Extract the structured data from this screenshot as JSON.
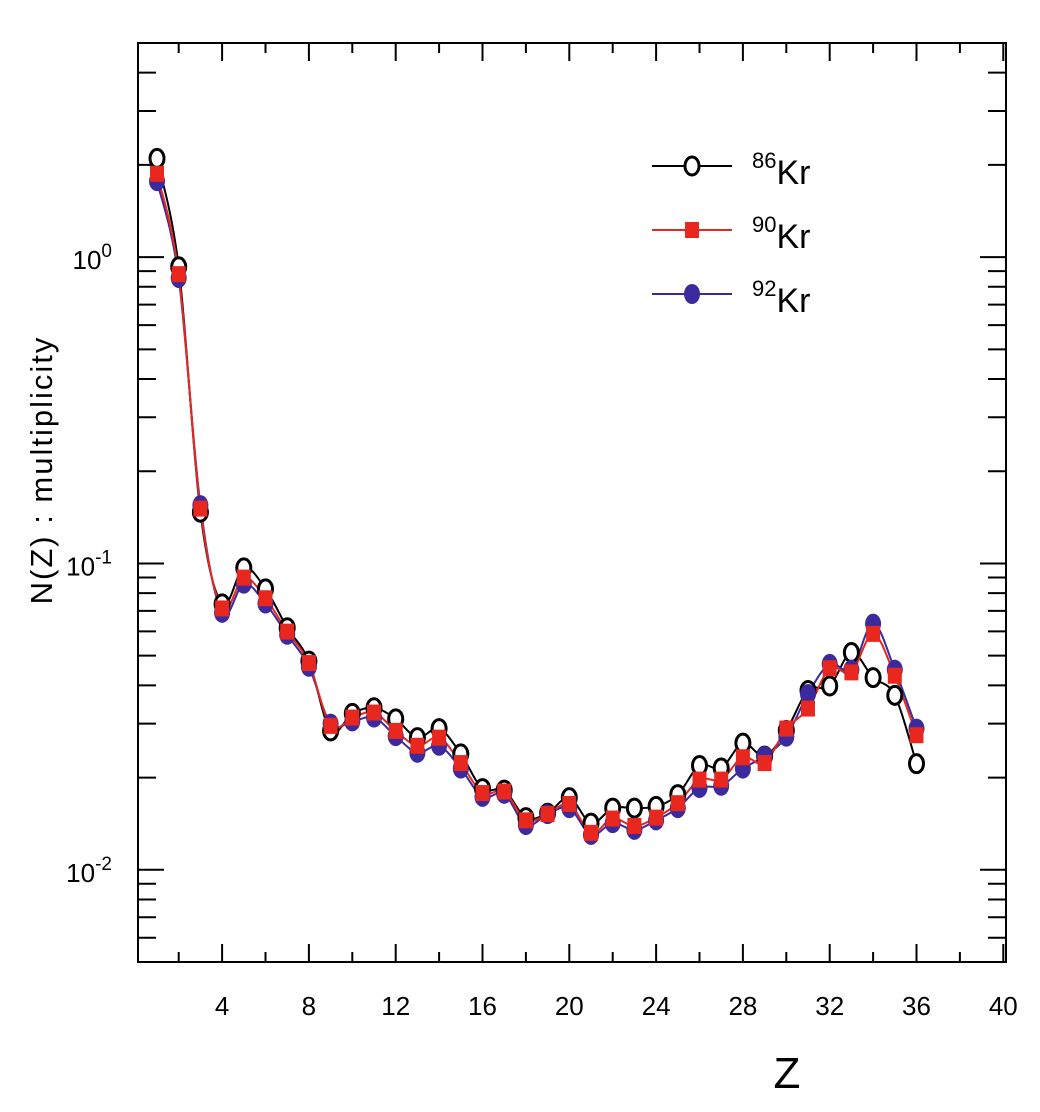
{
  "chart_data": {
    "type": "line",
    "title": "",
    "xlabel": "Z",
    "ylabel": "N(Z) : multiplicity",
    "xlim": [
      0,
      40
    ],
    "ylim": [
      0.005,
      5
    ],
    "yscale": "log",
    "grid": false,
    "legend_position": "top-right",
    "x_ticks": [
      4,
      8,
      12,
      16,
      20,
      24,
      28,
      32,
      36,
      40
    ],
    "y_ticks": [
      {
        "value": 1,
        "base": "10",
        "exp": "0"
      },
      {
        "value": 0.1,
        "base": "10",
        "exp": "-1"
      },
      {
        "value": 0.01,
        "base": "10",
        "exp": "-2"
      }
    ],
    "x": [
      1,
      2,
      3,
      4,
      5,
      6,
      7,
      8,
      9,
      10,
      11,
      12,
      13,
      14,
      15,
      16,
      17,
      18,
      19,
      20,
      21,
      22,
      23,
      24,
      25,
      26,
      27,
      28,
      29,
      30,
      31,
      32,
      33,
      34,
      35,
      36
    ],
    "series": [
      {
        "name": "86Kr",
        "mass": "86",
        "element": "Kr",
        "color": "#000000",
        "marker": "open-circle",
        "values": [
          2.1,
          0.93,
          0.147,
          0.0738,
          0.0967,
          0.0826,
          0.0617,
          0.048,
          0.0284,
          0.0324,
          0.0338,
          0.0311,
          0.027,
          0.0289,
          0.0239,
          0.0184,
          0.0182,
          0.0148,
          0.0153,
          0.0172,
          0.0142,
          0.0159,
          0.0159,
          0.0161,
          0.0176,
          0.0219,
          0.0215,
          0.0259,
          0.0235,
          0.0285,
          0.0385,
          0.0398,
          0.0512,
          0.0424,
          0.0371,
          0.0222
        ]
      },
      {
        "name": "90Kr",
        "mass": "90",
        "element": "Kr",
        "color": "#e8281e",
        "marker": "filled-square",
        "values": [
          1.87,
          0.88,
          0.151,
          0.0713,
          0.0899,
          0.077,
          0.0599,
          0.0473,
          0.0295,
          0.0314,
          0.0326,
          0.0284,
          0.0254,
          0.027,
          0.0223,
          0.0178,
          0.018,
          0.0145,
          0.0152,
          0.0164,
          0.0132,
          0.0147,
          0.0139,
          0.0148,
          0.0165,
          0.0197,
          0.0197,
          0.0233,
          0.0223,
          0.0289,
          0.0336,
          0.0455,
          0.0441,
          0.0589,
          0.043,
          0.0275
        ]
      },
      {
        "name": "92Kr",
        "mass": "92",
        "element": "Kr",
        "color": "#3a2a9e",
        "marker": "filled-circle",
        "values": [
          1.77,
          0.855,
          0.155,
          0.069,
          0.0859,
          0.074,
          0.0585,
          0.046,
          0.03,
          0.0305,
          0.0314,
          0.0273,
          0.0241,
          0.0254,
          0.0214,
          0.0173,
          0.0177,
          0.014,
          0.0152,
          0.0159,
          0.013,
          0.0142,
          0.0135,
          0.0145,
          0.0159,
          0.0185,
          0.0188,
          0.0214,
          0.0235,
          0.0272,
          0.0375,
          0.047,
          0.045,
          0.0636,
          0.045,
          0.0289
        ]
      }
    ]
  }
}
